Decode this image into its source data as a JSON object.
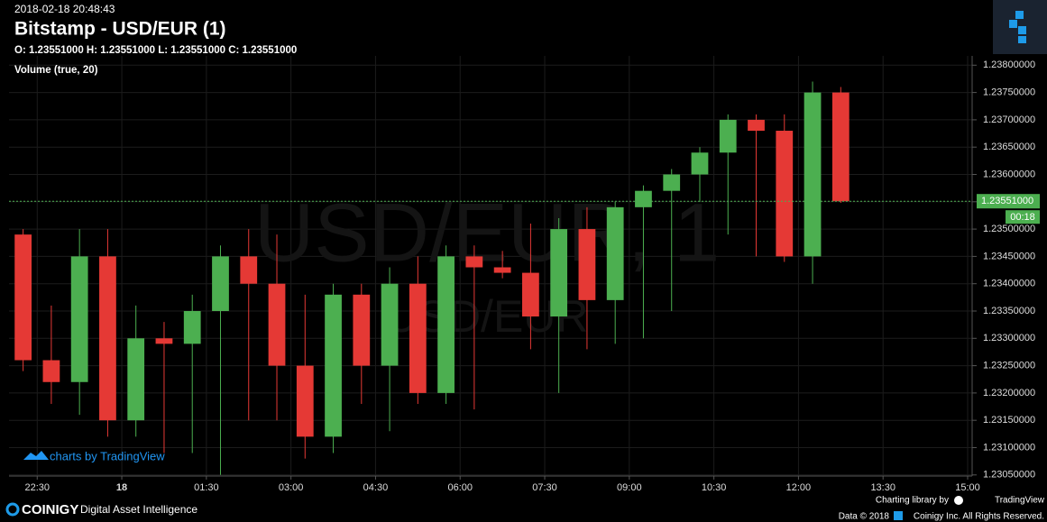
{
  "header": {
    "timestamp": "2018-02-18 20:48:43",
    "title": "Bitstamp - USD/EUR (1)",
    "ohlc": "O: 1.23551000 H: 1.23551000 L: 1.23551000 C: 1.23551000"
  },
  "chart_data": {
    "type": "candlestick",
    "indicator": "Volume (true, 20)",
    "watermark": "USD/EUR, 1",
    "watermark_small": "USD/EUR",
    "x": [
      "22:00",
      "22:30",
      "23:00",
      "23:30",
      "00:00",
      "00:30",
      "01:00",
      "01:30",
      "02:00",
      "02:30",
      "03:00",
      "03:30",
      "04:00",
      "04:30",
      "05:00",
      "05:30",
      "06:00",
      "06:30",
      "07:00",
      "07:30",
      "08:00",
      "08:30",
      "09:00",
      "09:30",
      "10:00",
      "10:30",
      "11:00",
      "11:30",
      "12:00",
      "12:30"
    ],
    "open": [
      1.2349,
      1.2326,
      1.2322,
      1.2345,
      1.2315,
      1.233,
      1.2329,
      1.2335,
      1.2345,
      1.234,
      1.2325,
      1.2312,
      1.2338,
      1.2325,
      1.234,
      1.232,
      1.2345,
      1.2343,
      1.2342,
      1.2334,
      1.235,
      1.2337,
      1.2354,
      1.2357,
      1.236,
      1.2364,
      1.237,
      1.2368,
      1.2345,
      1.2375
    ],
    "high": [
      1.235,
      1.2336,
      1.235,
      1.235,
      1.2336,
      1.2333,
      1.2338,
      1.2347,
      1.235,
      1.2349,
      1.2338,
      1.234,
      1.234,
      1.2343,
      1.2345,
      1.2347,
      1.2347,
      1.2346,
      1.2351,
      1.2352,
      1.2354,
      1.2355,
      1.2358,
      1.2361,
      1.2365,
      1.2371,
      1.2371,
      1.2371,
      1.2377,
      1.2376
    ],
    "low": [
      1.2324,
      1.2318,
      1.2316,
      1.2312,
      1.2312,
      1.2309,
      1.2309,
      1.2305,
      1.2315,
      1.2315,
      1.2308,
      1.2309,
      1.2318,
      1.2313,
      1.2318,
      1.2318,
      1.2317,
      1.2341,
      1.2328,
      1.232,
      1.2328,
      1.2329,
      1.233,
      1.2335,
      1.2355,
      1.2349,
      1.2345,
      1.2344,
      1.234,
      1.23548
    ],
    "close": [
      1.2326,
      1.2322,
      1.2345,
      1.2315,
      1.233,
      1.2329,
      1.2335,
      1.2345,
      1.234,
      1.2325,
      1.2312,
      1.2338,
      1.2325,
      1.234,
      1.232,
      1.2345,
      1.2343,
      1.2342,
      1.2334,
      1.235,
      1.2337,
      1.2354,
      1.2357,
      1.236,
      1.2364,
      1.237,
      1.2368,
      1.2345,
      1.2375,
      1.23551
    ],
    "up_color": "#4caf50",
    "down_color": "#e53935",
    "xlim": [
      "22:00",
      "15:00"
    ],
    "xticks": [
      "22:30",
      {
        "value": "00:00",
        "label": "18"
      },
      "01:30",
      "03:00",
      "04:30",
      "06:00",
      "07:30",
      "09:00",
      "10:30",
      "12:00",
      "13:30",
      "15:00"
    ],
    "ylim": [
      1.23048,
      1.23817
    ],
    "yticks": [
      {
        "value": 1.2305,
        "label": "1.23050000"
      },
      {
        "value": 1.231,
        "label": "1.23100000"
      },
      {
        "value": 1.2315,
        "label": "1.23150000"
      },
      {
        "value": 1.232,
        "label": "1.23200000"
      },
      {
        "value": 1.2325,
        "label": "1.23250000"
      },
      {
        "value": 1.233,
        "label": "1.23300000"
      },
      {
        "value": 1.2335,
        "label": "1.23350000"
      },
      {
        "value": 1.234,
        "label": "1.23400000"
      },
      {
        "value": 1.2345,
        "label": "1.23450000"
      },
      {
        "value": 1.235,
        "label": "1.23500000"
      },
      {
        "value": 1.2355,
        "label": "1.23550000"
      },
      {
        "value": 1.236,
        "label": "1.23600000"
      },
      {
        "value": 1.2365,
        "label": "1.23650000"
      },
      {
        "value": 1.237,
        "label": "1.23700000"
      },
      {
        "value": 1.2375,
        "label": "1.23750000"
      },
      {
        "value": 1.238,
        "label": "1.23800000"
      }
    ],
    "grid": true,
    "last_price": {
      "value": 1.23551,
      "label": "1.23551000"
    },
    "last_price_countdown": "00:18"
  },
  "branding": {
    "tradingview": "charts by TradingView",
    "library": "Charting library by",
    "library_name": "TradingView",
    "logo": "COINIGY",
    "tagline": "Digital Asset Intelligence",
    "data_year": "Data © 2018",
    "rights": "Coinigy Inc. All Rights Reserved."
  }
}
